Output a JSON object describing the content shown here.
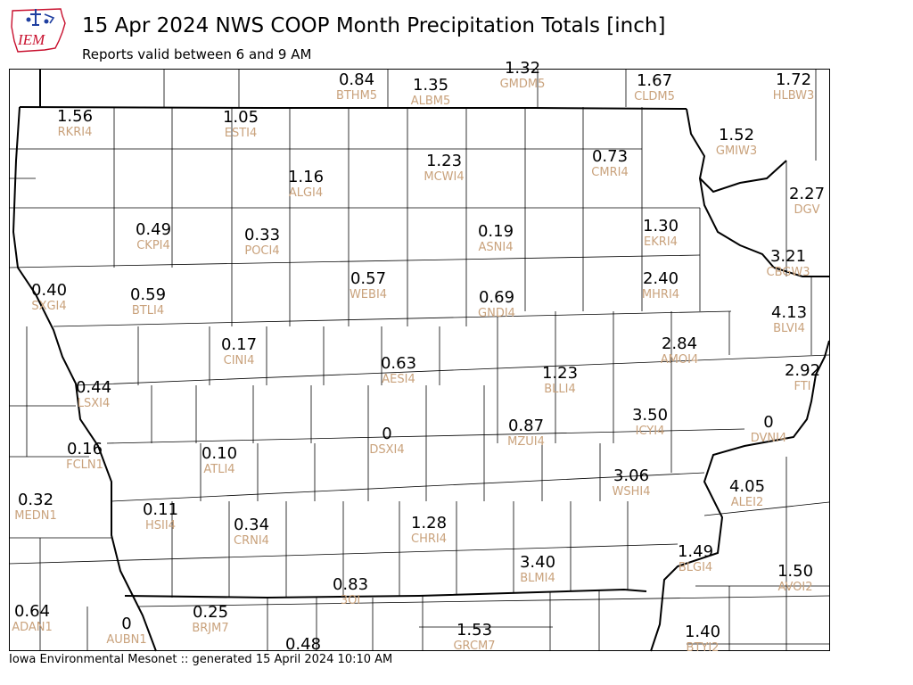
{
  "header": {
    "logo_text": "IEM",
    "title": "15 Apr 2024 NWS COOP Month Precipitation Totals [inch]",
    "subtitle": "Reports valid between 6 and 9 AM"
  },
  "footer": {
    "text": "Iowa Environmental Mesonet :: generated 15 April 2024 10:10 AM"
  },
  "colors": {
    "value_text": "#000000",
    "station_text": "#c9a27c",
    "county_line": "#000000",
    "logo_red": "#c8102e",
    "logo_blue": "#1f3fa0"
  },
  "stations": [
    {
      "value": "0.84",
      "id": "BTHM5"
    },
    {
      "value": "1.35",
      "id": "ALBM5"
    },
    {
      "value": "1.32",
      "id": "GMDM5"
    },
    {
      "value": "1.67",
      "id": "CLDM5"
    },
    {
      "value": "1.72",
      "id": "HLBW3"
    },
    {
      "value": "1.56",
      "id": "RKRI4"
    },
    {
      "value": "1.05",
      "id": "ESTI4"
    },
    {
      "value": "1.52",
      "id": "GMIW3"
    },
    {
      "value": "0.73",
      "id": "CMRI4"
    },
    {
      "value": "1.23",
      "id": "MCWI4"
    },
    {
      "value": "1.16",
      "id": "ALGI4"
    },
    {
      "value": "2.27",
      "id": "DGV"
    },
    {
      "value": "0.49",
      "id": "CKPI4"
    },
    {
      "value": "0.33",
      "id": "POCI4"
    },
    {
      "value": "0.19",
      "id": "ASNI4"
    },
    {
      "value": "1.30",
      "id": "EKRI4"
    },
    {
      "value": "3.21",
      "id": "CBGW3"
    },
    {
      "value": "0.40",
      "id": "SXGI4"
    },
    {
      "value": "0.59",
      "id": "BTLI4"
    },
    {
      "value": "0.57",
      "id": "WEBI4"
    },
    {
      "value": "0.69",
      "id": "GNDI4"
    },
    {
      "value": "2.40",
      "id": "MHRI4"
    },
    {
      "value": "4.13",
      "id": "BLVI4"
    },
    {
      "value": "0.17",
      "id": "CINI4"
    },
    {
      "value": "0.63",
      "id": "AESI4"
    },
    {
      "value": "2.84",
      "id": "AMOI4"
    },
    {
      "value": "2.92",
      "id": "FTI"
    },
    {
      "value": "0.44",
      "id": "LSXI4"
    },
    {
      "value": "1.23",
      "id": "BLLI4"
    },
    {
      "value": "3.50",
      "id": "ICYI4"
    },
    {
      "value": "0",
      "id": "DVNI4"
    },
    {
      "value": "0.16",
      "id": "FCLN1"
    },
    {
      "value": "0.10",
      "id": "ATLI4"
    },
    {
      "value": "0",
      "id": "DSXI4"
    },
    {
      "value": "0.87",
      "id": "MZUI4"
    },
    {
      "value": "3.06",
      "id": "WSHI4"
    },
    {
      "value": "4.05",
      "id": "ALEI2"
    },
    {
      "value": "0.32",
      "id": "MEDN1"
    },
    {
      "value": "0.11",
      "id": "HSII4"
    },
    {
      "value": "0.34",
      "id": "CRNI4"
    },
    {
      "value": "1.28",
      "id": "CHRI4"
    },
    {
      "value": "3.40",
      "id": "BLMI4"
    },
    {
      "value": "1.49",
      "id": "BLGI4"
    },
    {
      "value": "1.50",
      "id": "AVOI2"
    },
    {
      "value": "0.83",
      "id": "3OI"
    },
    {
      "value": "0.64",
      "id": "ADAN1"
    },
    {
      "value": "0",
      "id": "AUBN1"
    },
    {
      "value": "0.25",
      "id": "BRJM7"
    },
    {
      "value": "0.48",
      "id": ""
    },
    {
      "value": "1.53",
      "id": "GRCM7"
    },
    {
      "value": "1.40",
      "id": "BTYI2"
    }
  ]
}
